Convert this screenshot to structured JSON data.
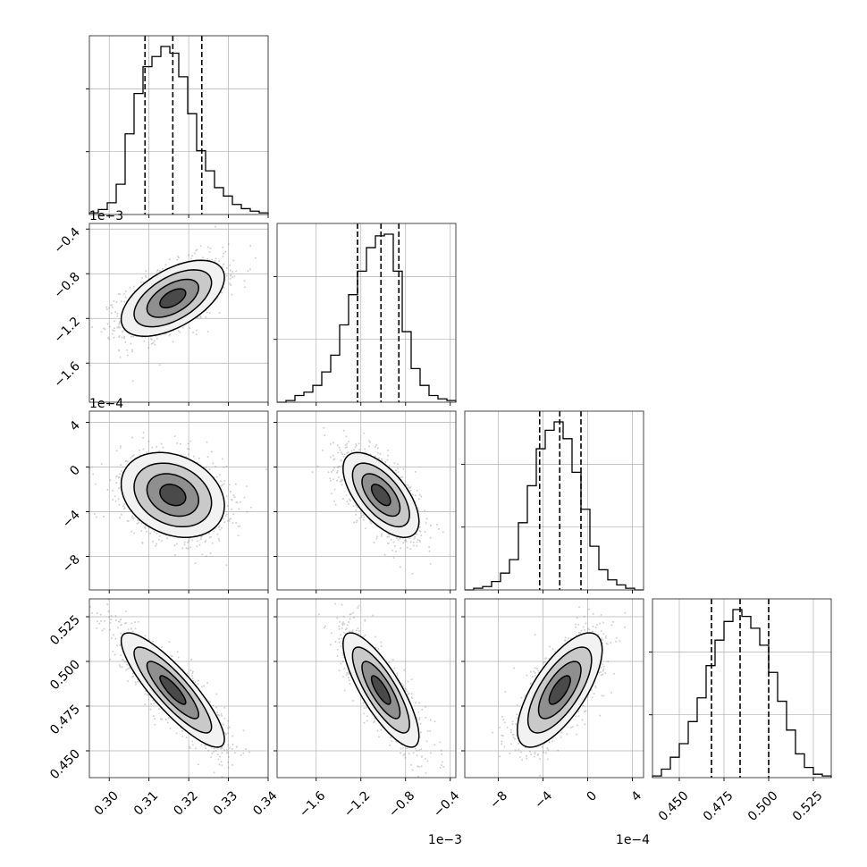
{
  "chart_data": {
    "type": "corner",
    "parameters": [
      {
        "range": [
          0.295,
          0.34
        ],
        "ticks": [
          0.3,
          0.31,
          0.32,
          0.33,
          0.34
        ],
        "tick_labels": [
          "0.30",
          "0.31",
          "0.32",
          "0.33",
          "0.34"
        ],
        "offset_label": "",
        "histogram": [
          0.01,
          0.03,
          0.07,
          0.18,
          0.48,
          0.72,
          0.88,
          0.94,
          1.0,
          0.96,
          0.82,
          0.6,
          0.38,
          0.26,
          0.16,
          0.11,
          0.06,
          0.035,
          0.02,
          0.01
        ],
        "quantiles": [
          0.309,
          0.316,
          0.3233
        ]
      },
      {
        "range": [
          -1.95,
          -0.35
        ],
        "ticks": [
          -1.6,
          -1.2,
          -0.8,
          -0.4
        ],
        "tick_labels": [
          "−1.6",
          "−1.2",
          "−0.8",
          "−0.4"
        ],
        "offset_label": "1e−3",
        "histogram": [
          0.0,
          0.01,
          0.04,
          0.06,
          0.1,
          0.18,
          0.28,
          0.46,
          0.64,
          0.78,
          0.92,
          0.99,
          1.0,
          0.78,
          0.42,
          0.2,
          0.1,
          0.04,
          0.02,
          0.01
        ],
        "quantiles": [
          -1.23,
          -1.02,
          -0.86
        ]
      },
      {
        "range": [
          -11.0,
          5.0
        ],
        "ticks": [
          -8,
          -4,
          0,
          4
        ],
        "tick_labels": [
          "−8",
          "−4",
          "0",
          "4"
        ],
        "offset_label": "1e−4",
        "histogram": [
          0.0,
          0.01,
          0.02,
          0.05,
          0.1,
          0.18,
          0.4,
          0.62,
          0.84,
          0.95,
          1.0,
          0.9,
          0.7,
          0.48,
          0.26,
          0.12,
          0.06,
          0.03,
          0.01,
          0.0
        ],
        "quantiles": [
          -4.3,
          -2.5,
          -0.6
        ]
      },
      {
        "range": [
          0.435,
          0.535
        ],
        "ticks": [
          0.45,
          0.475,
          0.5,
          0.525
        ],
        "tick_labels": [
          "0.450",
          "0.475",
          "0.500",
          "0.525"
        ],
        "offset_label": "",
        "histogram": [
          0.01,
          0.05,
          0.12,
          0.2,
          0.33,
          0.47,
          0.66,
          0.81,
          0.92,
          0.99,
          0.95,
          0.88,
          0.78,
          0.62,
          0.45,
          0.28,
          0.14,
          0.06,
          0.02,
          0.01
        ],
        "quantiles": [
          0.468,
          0.484,
          0.5
        ]
      }
    ],
    "pairs": [
      {
        "row": 1,
        "col": 0,
        "center": [
          0.316,
          -1.02
        ],
        "sigma": [
          0.0065,
          0.17
        ],
        "rho": 0.55
      },
      {
        "row": 2,
        "col": 0,
        "center": [
          0.316,
          -2.5
        ],
        "sigma": [
          0.0065,
          1.9
        ],
        "rho": -0.25
      },
      {
        "row": 2,
        "col": 1,
        "center": [
          -1.02,
          -2.5
        ],
        "sigma": [
          0.17,
          1.9
        ],
        "rho": -0.62
      },
      {
        "row": 3,
        "col": 0,
        "center": [
          0.316,
          0.484
        ],
        "sigma": [
          0.0065,
          0.016
        ],
        "rho": -0.86
      },
      {
        "row": 3,
        "col": 1,
        "center": [
          -1.02,
          0.484
        ],
        "sigma": [
          0.17,
          0.016
        ],
        "rho": -0.8
      },
      {
        "row": 3,
        "col": 2,
        "center": [
          -2.5,
          0.484
        ],
        "sigma": [
          1.9,
          0.016
        ],
        "rho": 0.7
      }
    ],
    "grid": true
  }
}
